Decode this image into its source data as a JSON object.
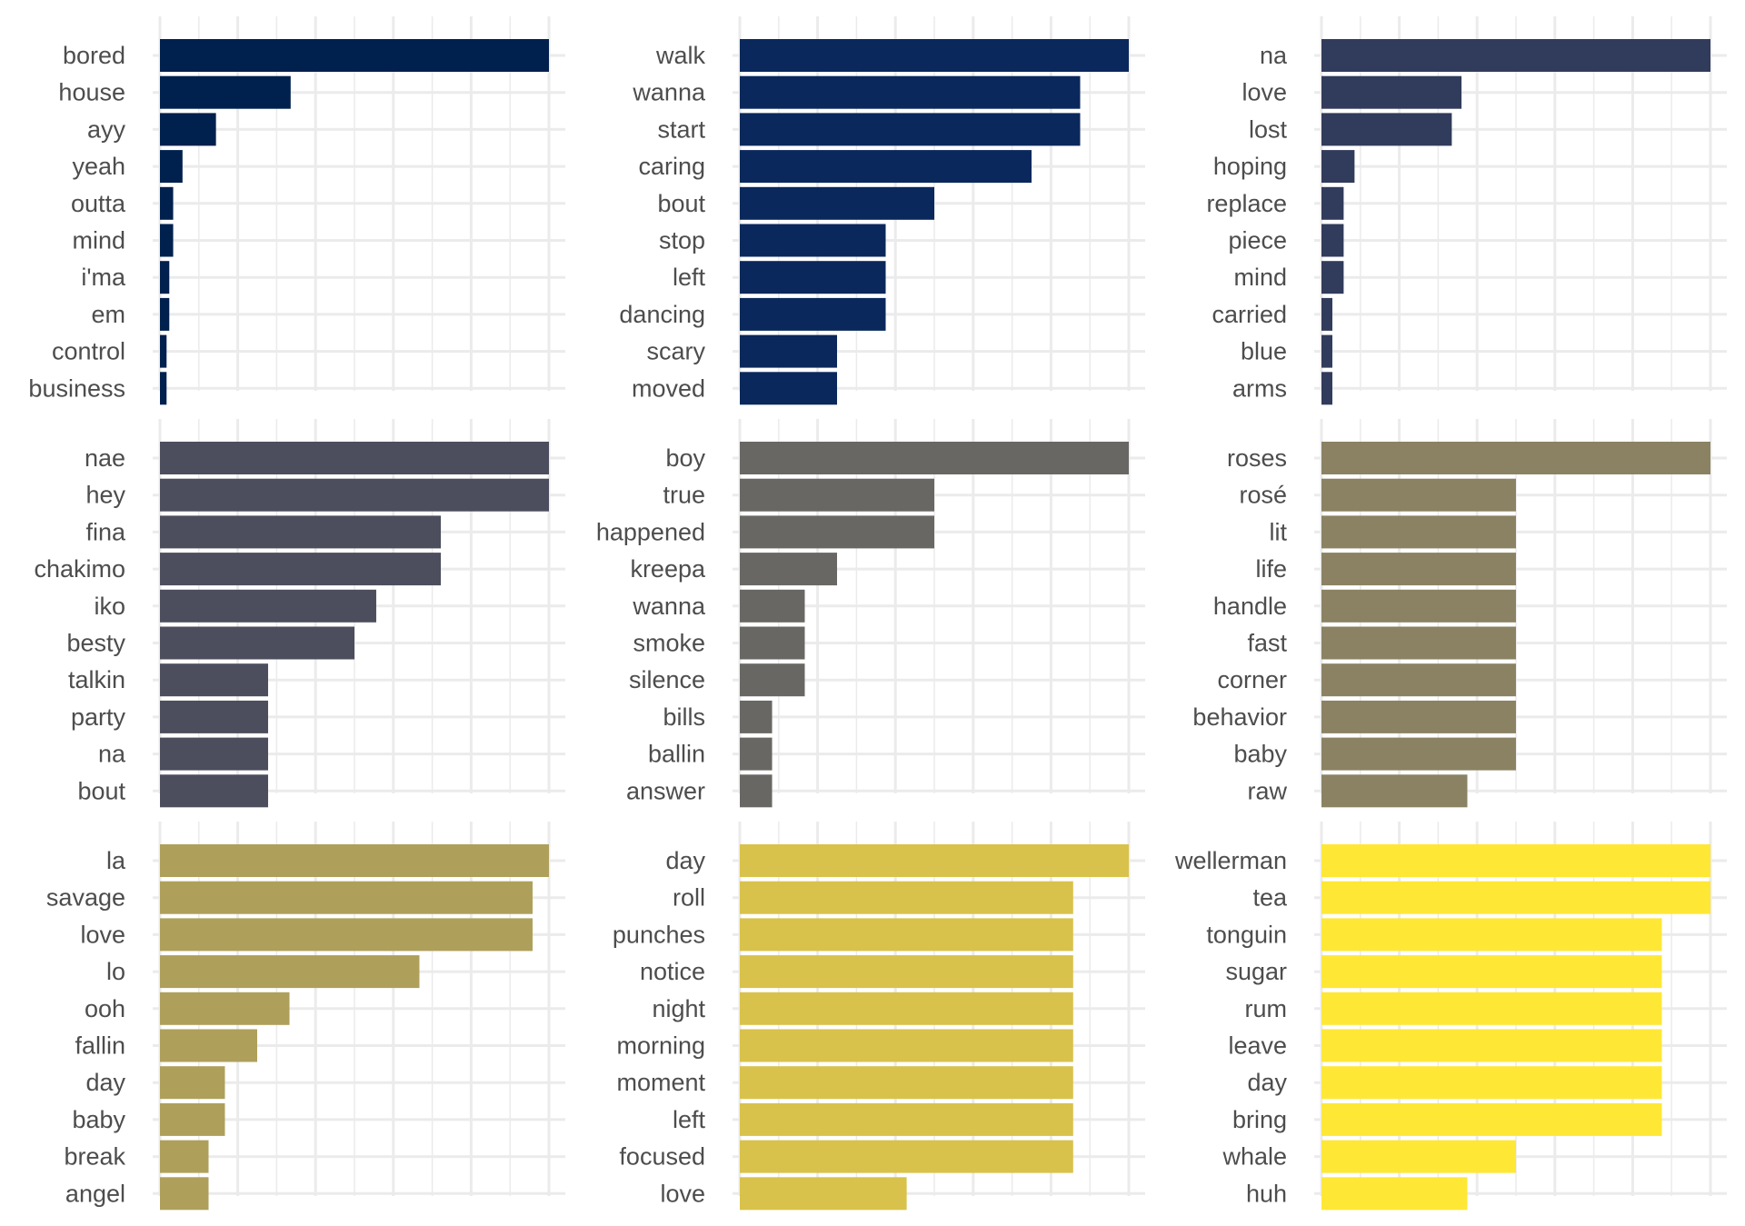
{
  "chart_data": [
    {
      "type": "bar",
      "orientation": "horizontal",
      "color": "#00204D",
      "xlim": [
        0,
        1
      ],
      "grid": true,
      "categories": [
        "bored",
        "house",
        "ayy",
        "yeah",
        "outta",
        "mind",
        "i'ma",
        "em",
        "control",
        "business"
      ],
      "values": [
        1.0,
        0.336,
        0.144,
        0.058,
        0.034,
        0.034,
        0.024,
        0.024,
        0.017,
        0.017
      ]
    },
    {
      "type": "bar",
      "orientation": "horizontal",
      "color": "#0A285C",
      "xlim": [
        0,
        1
      ],
      "grid": true,
      "categories": [
        "walk",
        "wanna",
        "start",
        "caring",
        "bout",
        "stop",
        "left",
        "dancing",
        "scary",
        "moved"
      ],
      "values": [
        1.0,
        0.875,
        0.875,
        0.75,
        0.5,
        0.375,
        0.375,
        0.375,
        0.25,
        0.25
      ]
    },
    {
      "type": "bar",
      "orientation": "horizontal",
      "color": "#313B5B",
      "xlim": [
        0,
        1
      ],
      "grid": true,
      "categories": [
        "na",
        "love",
        "lost",
        "hoping",
        "replace",
        "piece",
        "mind",
        "carried",
        "blue",
        "arms"
      ],
      "values": [
        1.0,
        0.36,
        0.335,
        0.085,
        0.057,
        0.057,
        0.057,
        0.028,
        0.028,
        0.028
      ]
    },
    {
      "type": "bar",
      "orientation": "horizontal",
      "color": "#4C4E5D",
      "xlim": [
        0,
        1
      ],
      "grid": true,
      "categories": [
        "nae",
        "hey",
        "fina",
        "chakimo",
        "iko",
        "besty",
        "talkin",
        "party",
        "na",
        "bout"
      ],
      "values": [
        1.0,
        1.0,
        0.722,
        0.722,
        0.556,
        0.5,
        0.278,
        0.278,
        0.278,
        0.278
      ]
    },
    {
      "type": "bar",
      "orientation": "horizontal",
      "color": "#696764",
      "xlim": [
        0,
        1
      ],
      "grid": true,
      "categories": [
        "boy",
        "true",
        "happened",
        "kreepa",
        "wanna",
        "smoke",
        "silence",
        "bills",
        "ballin",
        "answer"
      ],
      "values": [
        1.0,
        0.5,
        0.5,
        0.25,
        0.167,
        0.167,
        0.167,
        0.083,
        0.083,
        0.083
      ]
    },
    {
      "type": "bar",
      "orientation": "horizontal",
      "color": "#8A8263",
      "xlim": [
        0,
        1
      ],
      "grid": true,
      "categories": [
        "roses",
        "rosé",
        "lit",
        "life",
        "handle",
        "fast",
        "corner",
        "behavior",
        "baby",
        "raw"
      ],
      "values": [
        1.0,
        0.5,
        0.5,
        0.5,
        0.5,
        0.5,
        0.5,
        0.5,
        0.5,
        0.375
      ]
    },
    {
      "type": "bar",
      "orientation": "horizontal",
      "color": "#AEA05B",
      "xlim": [
        0,
        1
      ],
      "grid": true,
      "categories": [
        "la",
        "savage",
        "love",
        "lo",
        "ooh",
        "fallin",
        "day",
        "baby",
        "break",
        "angel"
      ],
      "values": [
        1.0,
        0.958,
        0.958,
        0.667,
        0.333,
        0.25,
        0.167,
        0.167,
        0.125,
        0.125
      ]
    },
    {
      "type": "bar",
      "orientation": "horizontal",
      "color": "#D8C24B",
      "xlim": [
        0,
        1
      ],
      "grid": true,
      "categories": [
        "day",
        "roll",
        "punches",
        "notice",
        "night",
        "morning",
        "moment",
        "left",
        "focused",
        "love"
      ],
      "values": [
        1.0,
        0.857,
        0.857,
        0.857,
        0.857,
        0.857,
        0.857,
        0.857,
        0.857,
        0.429
      ]
    },
    {
      "type": "bar",
      "orientation": "horizontal",
      "color": "#FFE736",
      "xlim": [
        0,
        1
      ],
      "grid": true,
      "categories": [
        "wellerman",
        "tea",
        "tonguin",
        "sugar",
        "rum",
        "leave",
        "day",
        "bring",
        "whale",
        "huh"
      ],
      "values": [
        1.0,
        1.0,
        0.875,
        0.875,
        0.875,
        0.875,
        0.875,
        0.875,
        0.5,
        0.375
      ]
    }
  ]
}
